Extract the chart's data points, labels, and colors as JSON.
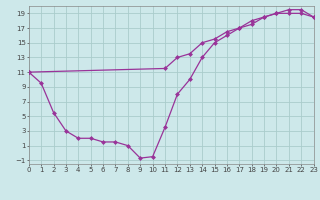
{
  "background_color": "#cde8ea",
  "grid_color": "#aacccc",
  "line_color": "#993399",
  "line1_x": [
    0,
    1,
    2,
    3,
    4,
    5,
    6,
    7,
    8,
    9,
    10,
    11,
    12,
    13,
    14,
    15,
    16,
    17,
    18,
    19,
    20,
    21,
    22,
    23
  ],
  "line1_y": [
    11,
    9.5,
    5.5,
    3.0,
    2.0,
    2.0,
    1.5,
    1.5,
    1.0,
    -0.7,
    -0.5,
    3.5,
    8.0,
    10.0,
    13.0,
    15.0,
    16.0,
    17.0,
    18.0,
    18.5,
    19.0,
    19.0,
    19.0,
    18.5
  ],
  "line2_x": [
    0,
    11,
    12,
    13,
    14,
    15,
    16,
    17,
    18,
    19,
    20,
    21,
    22,
    23
  ],
  "line2_y": [
    11,
    11.5,
    13.0,
    13.5,
    15.0,
    15.5,
    16.5,
    17.0,
    17.5,
    18.5,
    19.0,
    19.5,
    19.5,
    18.5
  ],
  "xlim": [
    0,
    23
  ],
  "ylim": [
    -1.5,
    20
  ],
  "xticks": [
    0,
    1,
    2,
    3,
    4,
    5,
    6,
    7,
    8,
    9,
    10,
    11,
    12,
    13,
    14,
    15,
    16,
    17,
    18,
    19,
    20,
    21,
    22,
    23
  ],
  "yticks": [
    -1,
    1,
    3,
    5,
    7,
    9,
    11,
    13,
    15,
    17,
    19
  ],
  "tick_fontsize": 5.0,
  "label_fontsize": 6.0,
  "marker_size": 2.5,
  "line_width": 0.9
}
